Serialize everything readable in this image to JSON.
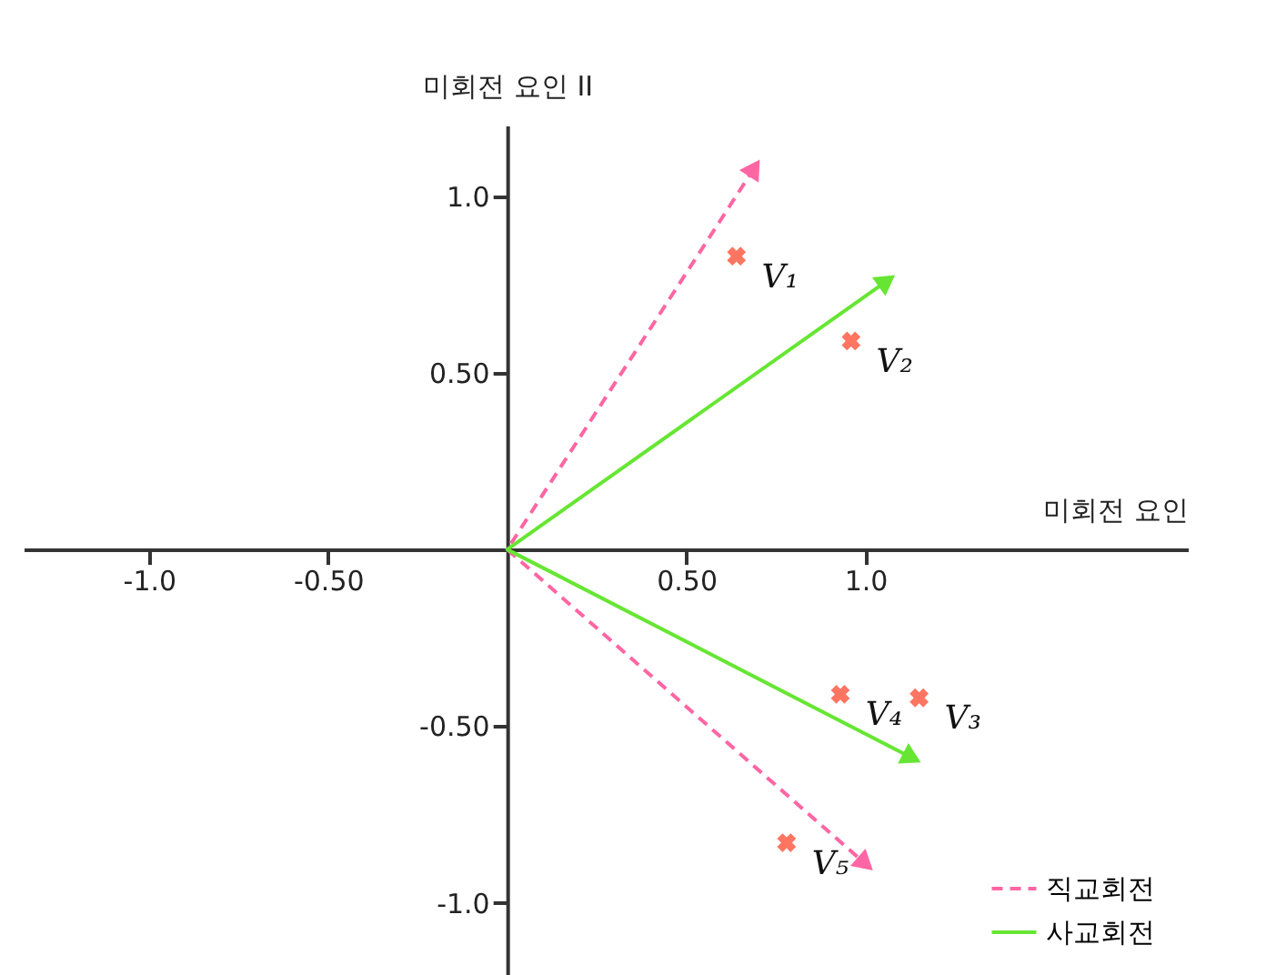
{
  "chart_data": {
    "type": "scatter",
    "xlabel": "미회전 요인",
    "ylabel": "미회전 요인 II",
    "xlim": [
      -1.35,
      1.9
    ],
    "ylim": [
      -1.22,
      1.2
    ],
    "xticks": [
      {
        "value": -1,
        "label": "-1.0"
      },
      {
        "value": -0.5,
        "label": "-0.50"
      },
      {
        "value": 0.5,
        "label": "0.50"
      },
      {
        "value": 1,
        "label": "1.0"
      }
    ],
    "yticks": [
      {
        "value": -1,
        "label": "-1.0"
      },
      {
        "value": -0.5,
        "label": "-0.50"
      },
      {
        "value": 0.5,
        "label": "0.50"
      },
      {
        "value": 1,
        "label": "1.0"
      }
    ],
    "grid": false,
    "legend": "bottom right",
    "series": [
      {
        "color": "#ff3b1f",
        "marker": "cross",
        "x": [
          0.64,
          0.96,
          1.15,
          0.93,
          0.78
        ],
        "values": [
          0.83,
          0.59,
          -0.42,
          -0.41,
          -0.83
        ]
      },
      {
        "type": "line",
        "name": "직교회전",
        "color": "#ff66a3",
        "line_style": "dashed",
        "x": [
          0.69,
          0,
          1.0
        ],
        "values": [
          1.08,
          0,
          -0.89
        ]
      },
      {
        "type": "line",
        "name": "사교회전",
        "color": "#66e633",
        "line_style": "solid",
        "x": [
          1.06,
          0,
          1.13
        ],
        "values": [
          0.76,
          0,
          -0.59
        ]
      }
    ],
    "annotations": [
      {
        "text": "V₁",
        "x": 0.64,
        "y": 0.83
      },
      {
        "text": "V₂",
        "x": 0.96,
        "y": 0.59
      },
      {
        "text": "V₃",
        "x": 1.15,
        "y": -0.42
      },
      {
        "text": "V₄",
        "x": 0.93,
        "y": -0.41
      },
      {
        "text": "V₅",
        "x": 0.78,
        "y": -0.83
      }
    ]
  }
}
